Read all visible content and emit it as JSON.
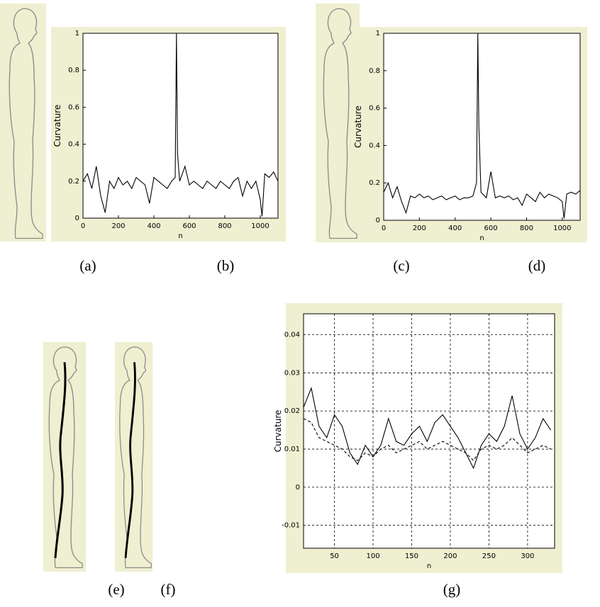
{
  "chart_data": [
    {
      "type": "line",
      "xlabel": "n",
      "ylabel": "Curvature",
      "x": [
        0,
        25,
        50,
        75,
        100,
        125,
        150,
        175,
        200,
        225,
        250,
        275,
        300,
        325,
        350,
        375,
        400,
        425,
        450,
        475,
        500,
        520,
        527,
        533,
        545,
        575,
        600,
        625,
        650,
        675,
        700,
        725,
        750,
        775,
        800,
        825,
        850,
        875,
        900,
        925,
        950,
        975,
        1000,
        1010,
        1025,
        1050,
        1075,
        1100
      ],
      "series": [
        {
          "color": "#000000",
          "values": [
            0.2,
            0.24,
            0.16,
            0.28,
            0.12,
            0.03,
            0.2,
            0.16,
            0.22,
            0.18,
            0.2,
            0.16,
            0.22,
            0.2,
            0.18,
            0.08,
            0.22,
            0.2,
            0.18,
            0.16,
            0.2,
            0.22,
            1,
            0.35,
            0.2,
            0.28,
            0.18,
            0.2,
            0.18,
            0.16,
            0.2,
            0.18,
            0.16,
            0.2,
            0.18,
            0.16,
            0.2,
            0.22,
            0.12,
            0.2,
            0.16,
            0.2,
            0.1,
            0.01,
            0.24,
            0.22,
            0.25,
            0.2
          ]
        }
      ],
      "xlim": [
        0,
        1100
      ],
      "xticks": [
        0,
        200,
        400,
        600,
        800,
        1000
      ],
      "ylim": [
        0,
        1
      ],
      "yticks": [
        0,
        0.2,
        0.4,
        0.6,
        0.8,
        1
      ],
      "grid": false
    },
    {
      "type": "line",
      "xlabel": "n",
      "ylabel": "Curvature",
      "x": [
        0,
        25,
        50,
        75,
        100,
        125,
        150,
        175,
        200,
        225,
        250,
        275,
        300,
        325,
        350,
        375,
        400,
        425,
        450,
        475,
        500,
        520,
        527,
        533,
        545,
        575,
        600,
        625,
        650,
        675,
        700,
        725,
        750,
        775,
        800,
        825,
        850,
        875,
        900,
        925,
        950,
        975,
        1000,
        1010,
        1025,
        1050,
        1075,
        1100
      ],
      "series": [
        {
          "color": "#000000",
          "values": [
            0.15,
            0.2,
            0.12,
            0.18,
            0.1,
            0.04,
            0.13,
            0.12,
            0.14,
            0.12,
            0.13,
            0.11,
            0.12,
            0.13,
            0.11,
            0.12,
            0.13,
            0.11,
            0.12,
            0.12,
            0.13,
            0.2,
            1,
            0.5,
            0.15,
            0.12,
            0.26,
            0.12,
            0.13,
            0.12,
            0.13,
            0.11,
            0.12,
            0.08,
            0.14,
            0.12,
            0.1,
            0.15,
            0.12,
            0.14,
            0.13,
            0.12,
            0.1,
            0.01,
            0.14,
            0.15,
            0.14,
            0.16
          ]
        }
      ],
      "xlim": [
        0,
        1100
      ],
      "xticks": [
        0,
        200,
        400,
        600,
        800,
        1000
      ],
      "ylim": [
        0,
        1
      ],
      "yticks": [
        0,
        0.2,
        0.4,
        0.6,
        0.8,
        1
      ],
      "grid": false
    },
    {
      "type": "line",
      "xlabel": "n",
      "ylabel": "Curvature",
      "x": [
        10,
        20,
        30,
        40,
        50,
        60,
        70,
        80,
        90,
        100,
        110,
        120,
        130,
        140,
        150,
        160,
        170,
        180,
        190,
        200,
        210,
        220,
        230,
        240,
        250,
        260,
        270,
        280,
        290,
        300,
        310,
        320,
        330
      ],
      "series": [
        {
          "color": "#000000",
          "dash": "solid",
          "values": [
            0.021,
            0.026,
            0.016,
            0.013,
            0.019,
            0.016,
            0.009,
            0.006,
            0.011,
            0.008,
            0.011,
            0.018,
            0.012,
            0.011,
            0.014,
            0.016,
            0.012,
            0.017,
            0.019,
            0.016,
            0.013,
            0.009,
            0.005,
            0.011,
            0.014,
            0.012,
            0.016,
            0.024,
            0.014,
            0.01,
            0.013,
            0.018,
            0.015
          ]
        },
        {
          "color": "#000000",
          "dash": "dashed",
          "values": [
            0.018,
            0.017,
            0.013,
            0.012,
            0.011,
            0.01,
            0.008,
            0.007,
            0.009,
            0.008,
            0.01,
            0.011,
            0.009,
            0.01,
            0.011,
            0.012,
            0.01,
            0.011,
            0.012,
            0.011,
            0.01,
            0.009,
            0.007,
            0.01,
            0.011,
            0.01,
            0.011,
            0.013,
            0.011,
            0.009,
            0.01,
            0.011,
            0.01
          ]
        }
      ],
      "xlim": [
        10,
        335
      ],
      "xticks": [
        50,
        100,
        150,
        200,
        250,
        300
      ],
      "ylim": [
        -0.016,
        0.0455
      ],
      "yticks": [
        -0.01,
        0,
        0.01,
        0.02,
        0.03,
        0.04
      ],
      "grid": true
    }
  ],
  "captions": [
    "(a)",
    "(b)",
    "(c)",
    "(d)",
    "(e)",
    "(f)",
    "(g)"
  ]
}
